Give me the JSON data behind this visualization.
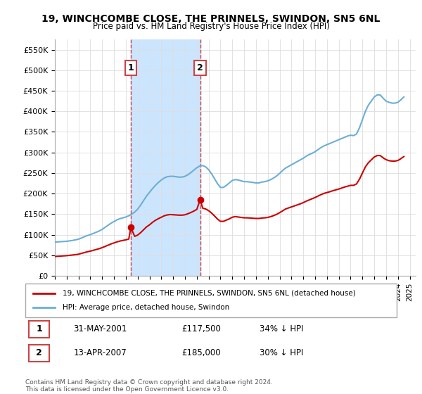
{
  "title": "19, WINCHCOMBE CLOSE, THE PRINNELS, SWINDON, SN5 6NL",
  "subtitle": "Price paid vs. HM Land Registry's House Price Index (HPI)",
  "legend_line1": "19, WINCHCOMBE CLOSE, THE PRINNELS, SWINDON, SN5 6NL (detached house)",
  "legend_line2": "HPI: Average price, detached house, Swindon",
  "footer": "Contains HM Land Registry data © Crown copyright and database right 2024.\nThis data is licensed under the Open Government Licence v3.0.",
  "transactions": [
    {
      "label": "1",
      "date": "31-MAY-2001",
      "price": 117500,
      "note": "34% ↓ HPI",
      "x": 2001.42
    },
    {
      "label": "2",
      "date": "13-APR-2007",
      "price": 185000,
      "note": "30% ↓ HPI",
      "x": 2007.28
    }
  ],
  "hpi_color": "#6baed6",
  "price_color": "#cc0000",
  "highlight_color": "#cce5ff",
  "ylim": [
    0,
    575000
  ],
  "xlim_start": 1995.0,
  "xlim_end": 2025.5,
  "yticks": [
    0,
    50000,
    100000,
    150000,
    200000,
    250000,
    300000,
    350000,
    400000,
    450000,
    500000,
    550000
  ],
  "ytick_labels": [
    "£0",
    "£50K",
    "£100K",
    "£150K",
    "£200K",
    "£250K",
    "£300K",
    "£350K",
    "£400K",
    "£450K",
    "£500K",
    "£550K"
  ],
  "hpi_data": {
    "x": [
      1995.0,
      1995.25,
      1995.5,
      1995.75,
      1996.0,
      1996.25,
      1996.5,
      1996.75,
      1997.0,
      1997.25,
      1997.5,
      1997.75,
      1998.0,
      1998.25,
      1998.5,
      1998.75,
      1999.0,
      1999.25,
      1999.5,
      1999.75,
      2000.0,
      2000.25,
      2000.5,
      2000.75,
      2001.0,
      2001.25,
      2001.5,
      2001.75,
      2002.0,
      2002.25,
      2002.5,
      2002.75,
      2003.0,
      2003.25,
      2003.5,
      2003.75,
      2004.0,
      2004.25,
      2004.5,
      2004.75,
      2005.0,
      2005.25,
      2005.5,
      2005.75,
      2006.0,
      2006.25,
      2006.5,
      2006.75,
      2007.0,
      2007.25,
      2007.5,
      2007.75,
      2008.0,
      2008.25,
      2008.5,
      2008.75,
      2009.0,
      2009.25,
      2009.5,
      2009.75,
      2010.0,
      2010.25,
      2010.5,
      2010.75,
      2011.0,
      2011.25,
      2011.5,
      2011.75,
      2012.0,
      2012.25,
      2012.5,
      2012.75,
      2013.0,
      2013.25,
      2013.5,
      2013.75,
      2014.0,
      2014.25,
      2014.5,
      2014.75,
      2015.0,
      2015.25,
      2015.5,
      2015.75,
      2016.0,
      2016.25,
      2016.5,
      2016.75,
      2017.0,
      2017.25,
      2017.5,
      2017.75,
      2018.0,
      2018.25,
      2018.5,
      2018.75,
      2019.0,
      2019.25,
      2019.5,
      2019.75,
      2020.0,
      2020.25,
      2020.5,
      2020.75,
      2021.0,
      2021.25,
      2021.5,
      2021.75,
      2022.0,
      2022.25,
      2022.5,
      2022.75,
      2023.0,
      2023.25,
      2023.5,
      2023.75,
      2024.0,
      2024.25,
      2024.5
    ],
    "y": [
      82000,
      82500,
      83000,
      83500,
      84000,
      85000,
      86000,
      87500,
      89000,
      92000,
      95000,
      98000,
      100000,
      103000,
      106000,
      109000,
      113000,
      118000,
      123000,
      128000,
      132000,
      136000,
      139000,
      141000,
      143000,
      146000,
      150000,
      155000,
      162000,
      172000,
      183000,
      194000,
      203000,
      212000,
      220000,
      227000,
      233000,
      238000,
      241000,
      242000,
      242000,
      241000,
      240000,
      240000,
      242000,
      246000,
      251000,
      257000,
      263000,
      267000,
      268000,
      265000,
      258000,
      248000,
      236000,
      224000,
      215000,
      215000,
      220000,
      226000,
      232000,
      234000,
      233000,
      231000,
      229000,
      229000,
      228000,
      227000,
      226000,
      226000,
      228000,
      229000,
      231000,
      234000,
      238000,
      243000,
      249000,
      256000,
      262000,
      266000,
      270000,
      274000,
      278000,
      282000,
      286000,
      291000,
      295000,
      298000,
      302000,
      307000,
      312000,
      316000,
      319000,
      322000,
      325000,
      328000,
      331000,
      334000,
      337000,
      340000,
      342000,
      341000,
      345000,
      360000,
      380000,
      400000,
      415000,
      425000,
      435000,
      440000,
      440000,
      432000,
      425000,
      422000,
      420000,
      420000,
      422000,
      428000,
      435000
    ]
  },
  "price_data": {
    "x": [
      1995.0,
      1995.25,
      1995.5,
      1995.75,
      1996.0,
      1996.25,
      1996.5,
      1996.75,
      1997.0,
      1997.25,
      1997.5,
      1997.75,
      1998.0,
      1998.25,
      1998.5,
      1998.75,
      1999.0,
      1999.25,
      1999.5,
      1999.75,
      2000.0,
      2000.25,
      2000.5,
      2000.75,
      2001.0,
      2001.25,
      2001.42,
      2001.75,
      2002.0,
      2002.25,
      2002.5,
      2002.75,
      2003.0,
      2003.25,
      2003.5,
      2003.75,
      2004.0,
      2004.25,
      2004.5,
      2004.75,
      2005.0,
      2005.25,
      2005.5,
      2005.75,
      2006.0,
      2006.25,
      2006.5,
      2006.75,
      2007.0,
      2007.28,
      2007.5,
      2007.75,
      2008.0,
      2008.25,
      2008.5,
      2008.75,
      2009.0,
      2009.25,
      2009.5,
      2009.75,
      2010.0,
      2010.25,
      2010.5,
      2010.75,
      2011.0,
      2011.25,
      2011.5,
      2011.75,
      2012.0,
      2012.25,
      2012.5,
      2012.75,
      2013.0,
      2013.25,
      2013.5,
      2013.75,
      2014.0,
      2014.25,
      2014.5,
      2014.75,
      2015.0,
      2015.25,
      2015.5,
      2015.75,
      2016.0,
      2016.25,
      2016.5,
      2016.75,
      2017.0,
      2017.25,
      2017.5,
      2017.75,
      2018.0,
      2018.25,
      2018.5,
      2018.75,
      2019.0,
      2019.25,
      2019.5,
      2019.75,
      2020.0,
      2020.25,
      2020.5,
      2020.75,
      2021.0,
      2021.25,
      2021.5,
      2021.75,
      2022.0,
      2022.25,
      2022.5,
      2022.75,
      2023.0,
      2023.25,
      2023.5,
      2023.75,
      2024.0,
      2024.25,
      2024.5
    ],
    "y": [
      47000,
      47500,
      48000,
      48500,
      49000,
      49800,
      50600,
      51500,
      52500,
      54500,
      56500,
      58500,
      60000,
      62000,
      64000,
      66000,
      68500,
      71500,
      74500,
      77500,
      80000,
      82500,
      84500,
      86000,
      87500,
      89500,
      117500,
      96000,
      99000,
      105000,
      112000,
      119000,
      124000,
      130000,
      135000,
      139000,
      142500,
      146000,
      148000,
      149000,
      148500,
      148000,
      147500,
      147500,
      148500,
      151000,
      154000,
      157500,
      161500,
      185000,
      164500,
      162500,
      158500,
      152500,
      145500,
      138000,
      132500,
      132500,
      135500,
      138500,
      142500,
      144000,
      143000,
      142000,
      141000,
      141000,
      140500,
      140000,
      139500,
      139500,
      140500,
      141000,
      142000,
      144000,
      146500,
      149500,
      153500,
      158000,
      162500,
      165000,
      167500,
      170000,
      172500,
      175000,
      178000,
      181500,
      184500,
      187500,
      190500,
      194000,
      197500,
      200500,
      202500,
      204500,
      207000,
      209000,
      211000,
      213500,
      216000,
      218000,
      220000,
      220000,
      223500,
      235000,
      250000,
      265000,
      275000,
      282000,
      289000,
      292500,
      292500,
      287000,
      282500,
      280000,
      279000,
      279000,
      280500,
      285000,
      290000
    ]
  }
}
